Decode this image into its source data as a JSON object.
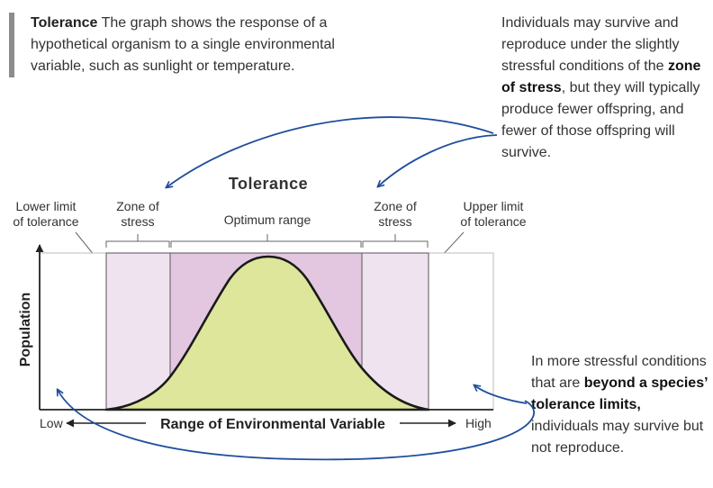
{
  "intro": {
    "term": "Tolerance",
    "text": " The graph shows the response of a hypothetical organism to a single environmental variable, such as sunlight or temperature."
  },
  "note_top": {
    "text_before": "Individuals may survive and reproduce under the slightly stressful conditions of the ",
    "emphasis": "zone of stress",
    "text_after": ", but they will typically produce fewer offspring, and fewer of those offspring will survive."
  },
  "note_bottom": {
    "text_before": "In more stressful conditions that are ",
    "emphasis": "beyond a species’ tolerance limits,",
    "text_after": " individuals may survive but not reproduce."
  },
  "diagram": {
    "title": "Tolerance",
    "lower_limit_line1": "Lower limit",
    "lower_limit_line2": "of tolerance",
    "zone_left_line1": "Zone of",
    "zone_left_line2": "stress",
    "optimum": "Optimum range",
    "zone_right_line1": "Zone of",
    "zone_right_line2": "stress",
    "upper_limit_line1": "Upper limit",
    "upper_limit_line2": "of tolerance",
    "y_axis": "Population",
    "x_axis": "Range of Environmental Variable",
    "x_low": "Low",
    "x_high": "High"
  },
  "colors": {
    "curve_fill": "#dde69a",
    "stress_zone": "#efe3f0",
    "optimum_zone": "#e3c7e0",
    "arrow": "#1f4e9c"
  }
}
